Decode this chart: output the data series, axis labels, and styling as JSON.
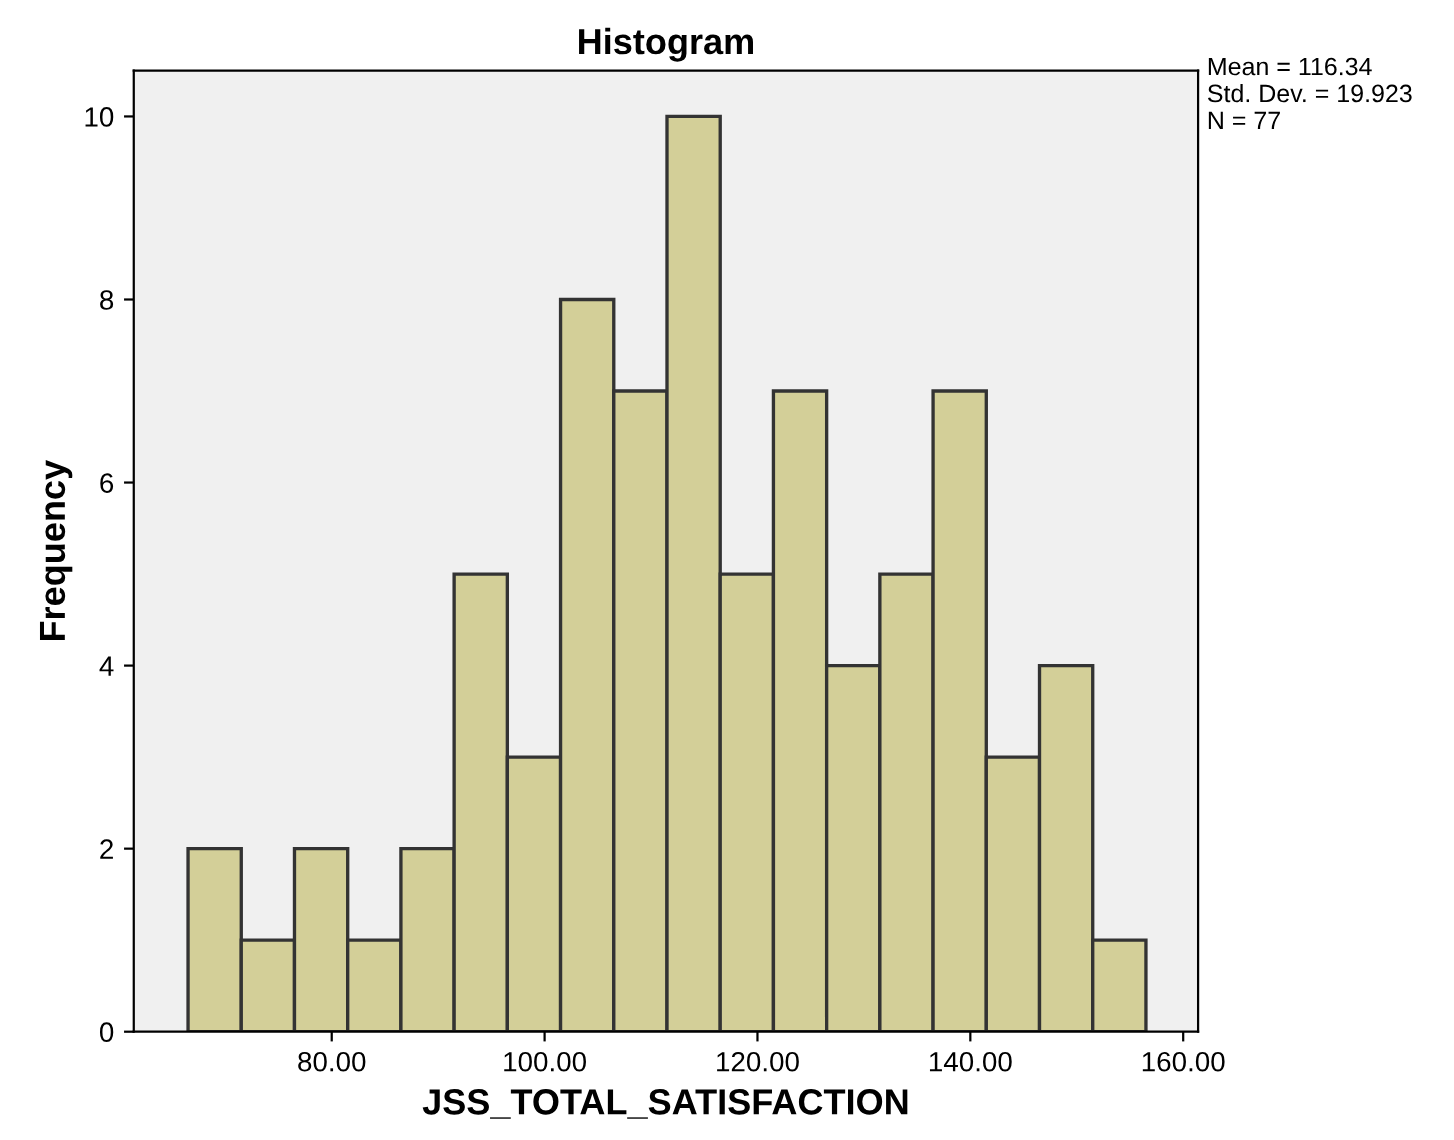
{
  "chart_data": {
    "type": "histogram",
    "title": "Histogram",
    "xlabel": "JSS_TOTAL_SATISFACTION",
    "ylabel": "Frequency",
    "bins": [
      66.5,
      71.5,
      76.5,
      81.5,
      86.5,
      91.5,
      96.5,
      101.5,
      106.5,
      111.5,
      116.5,
      121.5,
      126.5,
      131.5,
      136.5,
      141.5,
      146.5,
      151.5,
      156.5
    ],
    "values": [
      2,
      1,
      2,
      1,
      2,
      5,
      3,
      8,
      7,
      10,
      5,
      7,
      4,
      5,
      7,
      3,
      4,
      1
    ],
    "color": "#d3cf98",
    "xlim": [
      61.4,
      161.4
    ],
    "ylim": [
      0,
      10.5
    ],
    "xticks": [
      {
        "value": 80,
        "label": "80.00"
      },
      {
        "value": 100,
        "label": "100.00"
      },
      {
        "value": 120,
        "label": "120.00"
      },
      {
        "value": 140,
        "label": "140.00"
      },
      {
        "value": 160,
        "label": "160.00"
      }
    ],
    "yticks": [
      0,
      2,
      4,
      6,
      8,
      10
    ],
    "grid": false,
    "annotations": [
      "Mean = 116.34\nStd. Dev. = 19.923\nN = 77"
    ]
  }
}
